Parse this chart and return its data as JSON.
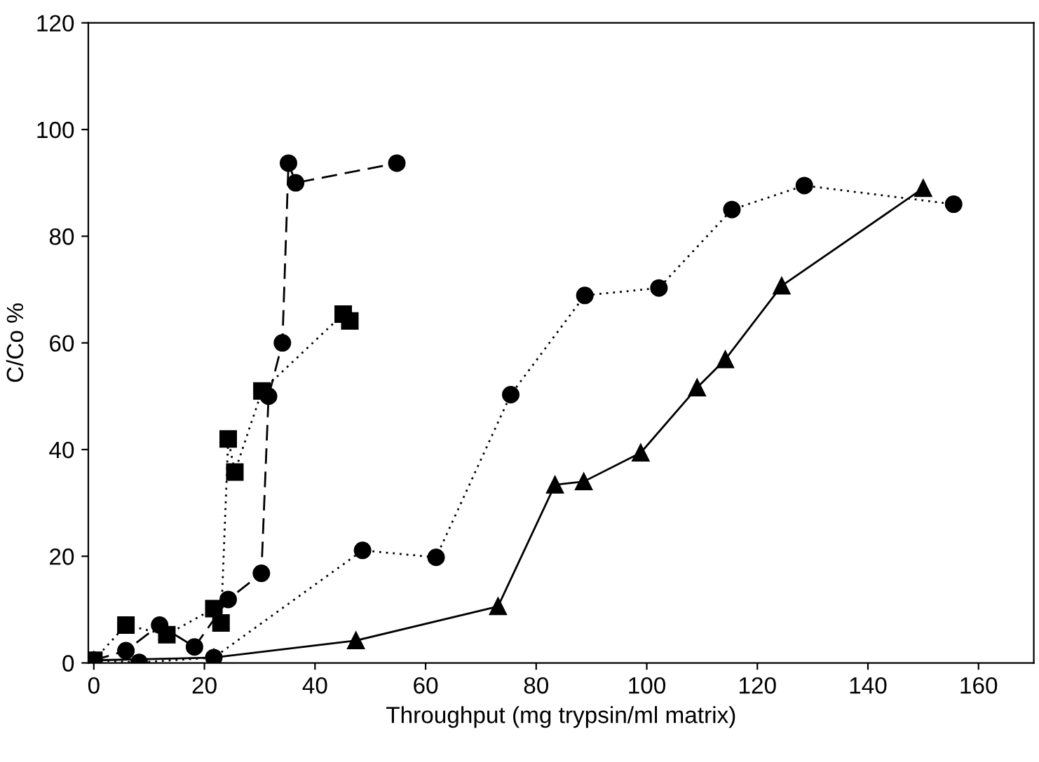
{
  "chart_data": {
    "type": "line",
    "xlabel": "Throughput (mg trypsin/ml matrix)",
    "ylabel": "C/Co %",
    "xlim": [
      -1,
      170
    ],
    "ylim": [
      0,
      120
    ],
    "xticks": [
      0,
      20,
      40,
      60,
      80,
      100,
      120,
      140,
      160
    ],
    "yticks": [
      0,
      20,
      40,
      60,
      80,
      100,
      120
    ],
    "grid": false,
    "legend": false,
    "series": [
      {
        "color": "#000000",
        "marker": "circle",
        "line_style": "dashed",
        "x": [
          0,
          5.8,
          11.9,
          18.2,
          24.3,
          30.3,
          31.6,
          34.1,
          35.2,
          36.5,
          54.8
        ],
        "values": [
          0.5,
          2.3,
          7.1,
          3,
          11.9,
          16.8,
          50,
          60,
          93.7,
          90,
          93.7
        ]
      },
      {
        "color": "#000000",
        "marker": "square",
        "line_style": "dotted",
        "x": [
          0,
          5.8,
          13.2,
          21.7,
          23,
          24.3,
          25.5,
          30.4,
          45.1,
          46.3
        ],
        "values": [
          0.5,
          7.1,
          5.3,
          10.2,
          7.5,
          42,
          35.8,
          51,
          65.4,
          64.1
        ]
      },
      {
        "color": "#000000",
        "marker": "circle",
        "line_style": "dotted",
        "x": [
          0,
          8.2,
          21.7,
          48.6,
          61.9,
          75.4,
          88.8,
          102.2,
          115.4,
          128.5,
          155.5
        ],
        "values": [
          0.5,
          0.1,
          1,
          21.1,
          19.8,
          50.3,
          68.9,
          70.3,
          85,
          89.5,
          86
        ]
      },
      {
        "color": "#000000",
        "marker": "triangle",
        "line_style": "solid",
        "x": [
          0,
          21.7,
          47.4,
          73.1,
          83.4,
          88.6,
          98.9,
          109.1,
          114.2,
          124.4,
          150
        ],
        "values": [
          0.5,
          1,
          4.2,
          10.6,
          33.4,
          34,
          39.4,
          51.6,
          56.9,
          70.7,
          89
        ]
      }
    ]
  }
}
